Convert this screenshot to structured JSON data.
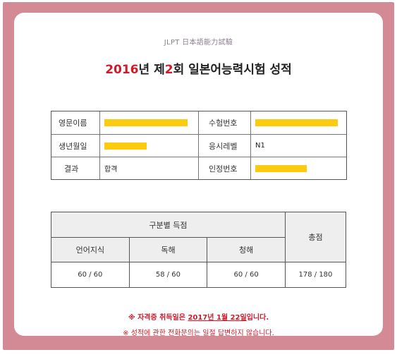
{
  "header": {
    "subtitle": "JLPT 日本語能力試驗",
    "title_year": "2016",
    "title_part1": "년 제",
    "title_num": "2",
    "title_part2": "회 일본어능력시험 성적"
  },
  "info": {
    "name_label": "영문이름",
    "exam_no_label": "수험번호",
    "birth_label": "생년월일",
    "level_label": "응시레벨",
    "level_value": "N1",
    "result_label": "결과",
    "result_value": "합격",
    "cert_no_label": "인정번호"
  },
  "scores": {
    "group_header": "구분별 득점",
    "total_header": "총점",
    "sections": [
      {
        "label": "언어지식",
        "value": "60 / 60"
      },
      {
        "label": "독해",
        "value": "58 / 60"
      },
      {
        "label": "청해",
        "value": "60 / 60"
      }
    ],
    "total_value": "178 / 180"
  },
  "notes": {
    "line1_prefix": "※ 자격증 취득일은 ",
    "line1_date": "2017년 1월 22일",
    "line1_suffix": "입니다.",
    "line2": "※ 성적에 관한 전화문의는 일절 답변하지 않습니다."
  },
  "colors": {
    "frame": "#d38a94",
    "accent_red": "#d0192b",
    "redaction": "#fccb0e"
  }
}
